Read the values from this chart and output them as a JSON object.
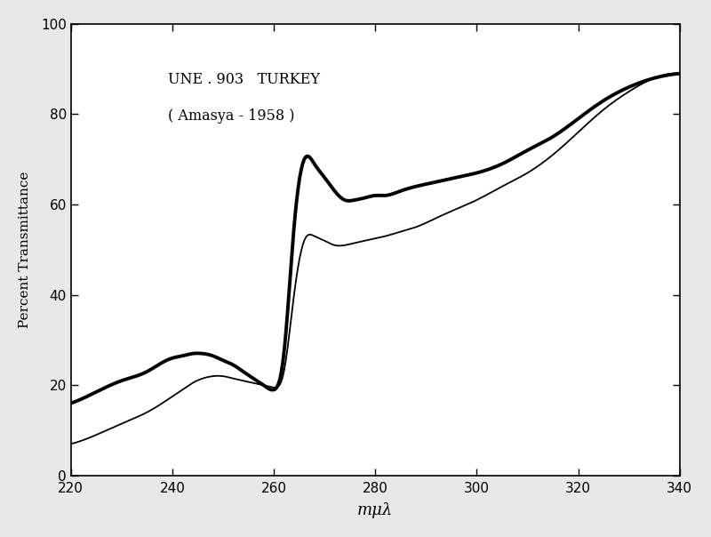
{
  "title_line1": "UNE . 903   TURKEY",
  "title_line2": "( Amasya - 1958 )",
  "xlabel": "mμλ",
  "ylabel": "Percent Transmittance",
  "xlim": [
    220,
    340
  ],
  "ylim": [
    0,
    100
  ],
  "xticks": [
    220,
    240,
    260,
    280,
    300,
    320,
    340
  ],
  "yticks": [
    0,
    20,
    40,
    60,
    80,
    100
  ],
  "bg_color": "#e8e8e8",
  "ax_bg_color": "#ffffff",
  "curve_thick": {
    "x": [
      220,
      225,
      230,
      235,
      238,
      240,
      242,
      244,
      246,
      248,
      250,
      252,
      254,
      256,
      258,
      260,
      262,
      264,
      266,
      268,
      270,
      272,
      274,
      276,
      278,
      280,
      282,
      285,
      288,
      292,
      296,
      300,
      305,
      310,
      315,
      320,
      325,
      330,
      335,
      340
    ],
    "y": [
      16,
      18.5,
      21,
      23,
      25,
      26,
      26.5,
      27,
      27,
      26.5,
      25.5,
      24.5,
      23,
      21.5,
      20,
      19,
      27,
      55,
      70,
      69,
      66,
      63,
      61,
      61,
      61.5,
      62,
      62,
      63,
      64,
      65,
      66,
      67,
      69,
      72,
      75,
      79,
      83,
      86,
      88,
      89
    ],
    "linewidth": 2.8,
    "color": "#000000"
  },
  "curve_thin": {
    "x": [
      220,
      225,
      230,
      235,
      238,
      240,
      242,
      244,
      246,
      248,
      250,
      252,
      254,
      256,
      258,
      260,
      262,
      264,
      266,
      268,
      270,
      272,
      274,
      276,
      278,
      280,
      282,
      285,
      288,
      292,
      296,
      300,
      305,
      310,
      315,
      320,
      325,
      330,
      335,
      340
    ],
    "y": [
      7,
      9,
      11.5,
      14,
      16,
      17.5,
      19,
      20.5,
      21.5,
      22,
      22,
      21.5,
      21,
      20.5,
      20,
      19.5,
      23,
      40,
      52,
      53,
      52,
      51,
      51,
      51.5,
      52,
      52.5,
      53,
      54,
      55,
      57,
      59,
      61,
      64,
      67,
      71,
      76,
      81,
      85,
      88,
      89
    ],
    "linewidth": 1.3,
    "color": "#000000"
  }
}
